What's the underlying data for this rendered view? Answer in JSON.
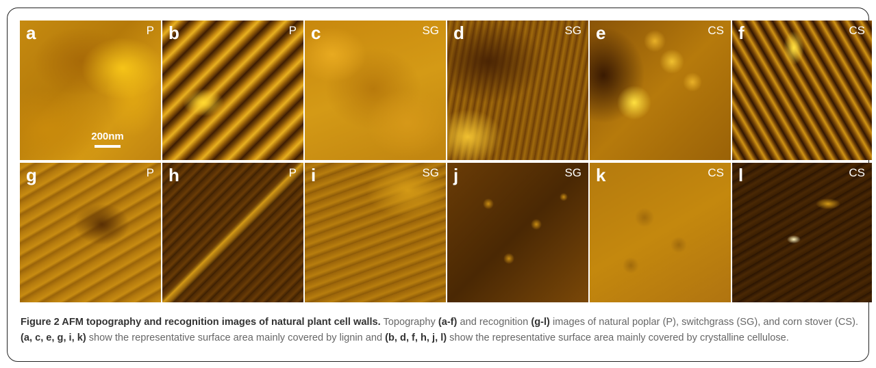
{
  "figure": {
    "panels": [
      {
        "letter": "a",
        "tag": "P"
      },
      {
        "letter": "b",
        "tag": "P"
      },
      {
        "letter": "c",
        "tag": "SG"
      },
      {
        "letter": "d",
        "tag": "SG"
      },
      {
        "letter": "e",
        "tag": "CS"
      },
      {
        "letter": "f",
        "tag": "CS"
      },
      {
        "letter": "g",
        "tag": "P"
      },
      {
        "letter": "h",
        "tag": "P"
      },
      {
        "letter": "i",
        "tag": "SG"
      },
      {
        "letter": "j",
        "tag": "SG"
      },
      {
        "letter": "k",
        "tag": "CS"
      },
      {
        "letter": "l",
        "tag": "CS"
      }
    ],
    "scale_bar": "200nm"
  },
  "caption": {
    "title": "Figure 2 AFM topography and recognition images of natural plant cell walls.",
    "t1": " Topography ",
    "r1": "(a-f)",
    "t2": " and recognition ",
    "r2": "(g-l)",
    "t3": " images of natural poplar (P), switchgrass (SG), and corn stover (CS). ",
    "r3": "(a, c, e, g, i, k)",
    "t4": " show the representative surface area mainly covered by lignin and ",
    "r4": "(b, d, f, h, j, l)",
    "t5": " show the representative surface area mainly covered by crystalline cellulose."
  }
}
